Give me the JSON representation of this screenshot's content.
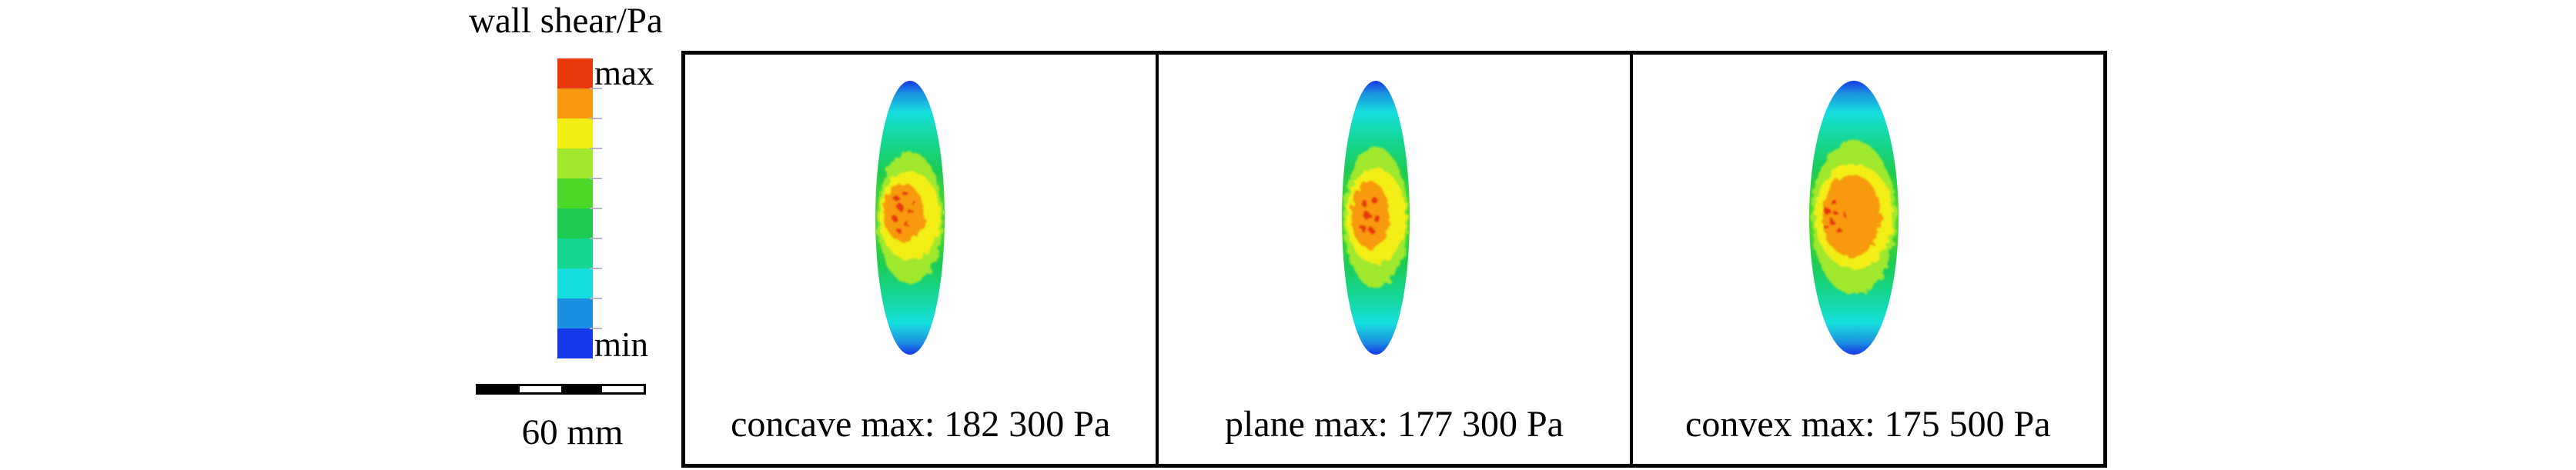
{
  "title": "wall shear/Pa",
  "colorbar": {
    "top_label": "max",
    "bottom_label": "min",
    "colors": [
      "#e8380c",
      "#f89a10",
      "#f2ee12",
      "#9fe82e",
      "#4ad928",
      "#1ecb52",
      "#14d68f",
      "#16dede",
      "#1b90e0",
      "#1538e8"
    ]
  },
  "scale_bar": {
    "label": "60 mm"
  },
  "chart_data": {
    "type": "heatmap",
    "title": "wall shear/Pa",
    "units": "Pa",
    "legend_position": "left",
    "colorbar": {
      "orientation": "vertical",
      "max_label": "max",
      "min_label": "min",
      "colors_top_to_bottom": [
        "#e8380c",
        "#f89a10",
        "#f2ee12",
        "#9fe82e",
        "#4ad928",
        "#1ecb52",
        "#14d68f",
        "#16dede",
        "#1b90e0",
        "#1538e8"
      ]
    },
    "scale_bar": {
      "label": "60 mm",
      "length_mm": 60
    },
    "panels": [
      {
        "name": "concave",
        "max_wall_shear_pa": 182300,
        "caption": "concave max: 182 300 Pa"
      },
      {
        "name": "plane",
        "max_wall_shear_pa": 177300,
        "caption": "plane max: 177 300 Pa"
      },
      {
        "name": "convex",
        "max_wall_shear_pa": 175500,
        "caption": "convex max: 175 500 Pa"
      }
    ]
  }
}
